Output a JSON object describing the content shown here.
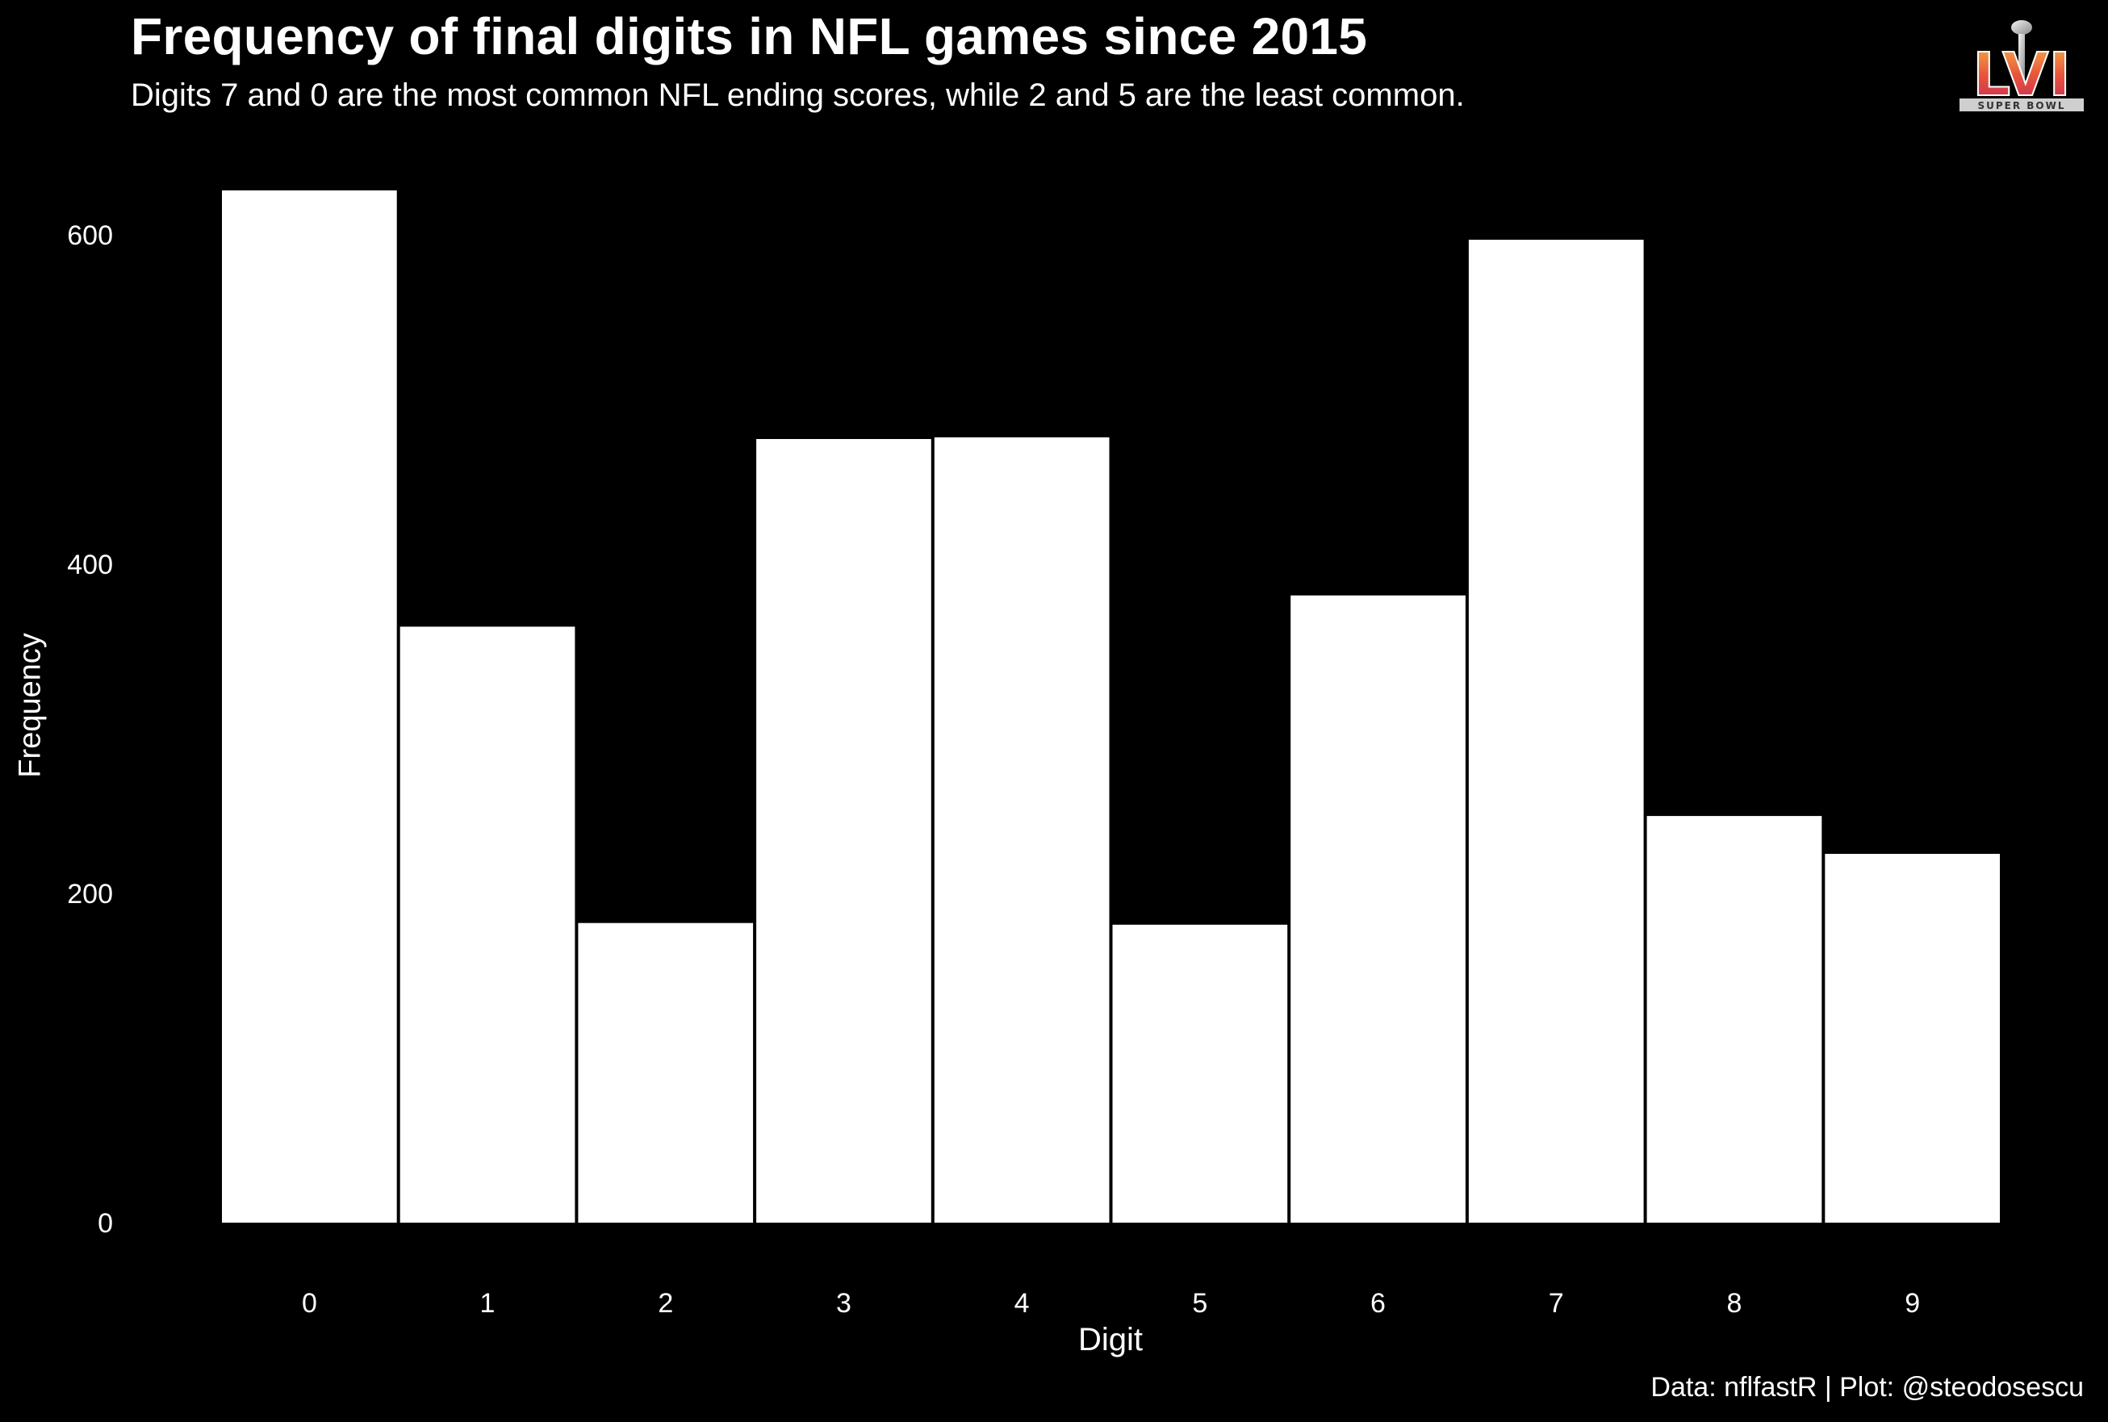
{
  "chart_data": {
    "type": "bar",
    "title": "Frequency of final digits in NFL games since 2015",
    "subtitle": "Digits 7 and 0 are the most common NFL ending scores, while 2 and 5 are the least common.",
    "xlabel": "Digit",
    "ylabel": "Frequency",
    "categories": [
      "0",
      "1",
      "2",
      "3",
      "4",
      "5",
      "6",
      "7",
      "8",
      "9"
    ],
    "values": [
      627,
      362,
      182,
      476,
      477,
      181,
      381,
      597,
      247,
      224
    ],
    "yticks": [
      0,
      200,
      400,
      600
    ],
    "ylim": [
      0,
      640
    ],
    "grid": false,
    "bar_color": "#ffffff",
    "background_color": "#000000",
    "caption": "Data: nflfastR | Plot: @steodosescu"
  },
  "logo": {
    "icon": "super-bowl-lvi-logo",
    "numeral": "LVI",
    "text": "SUPER BOWL"
  }
}
